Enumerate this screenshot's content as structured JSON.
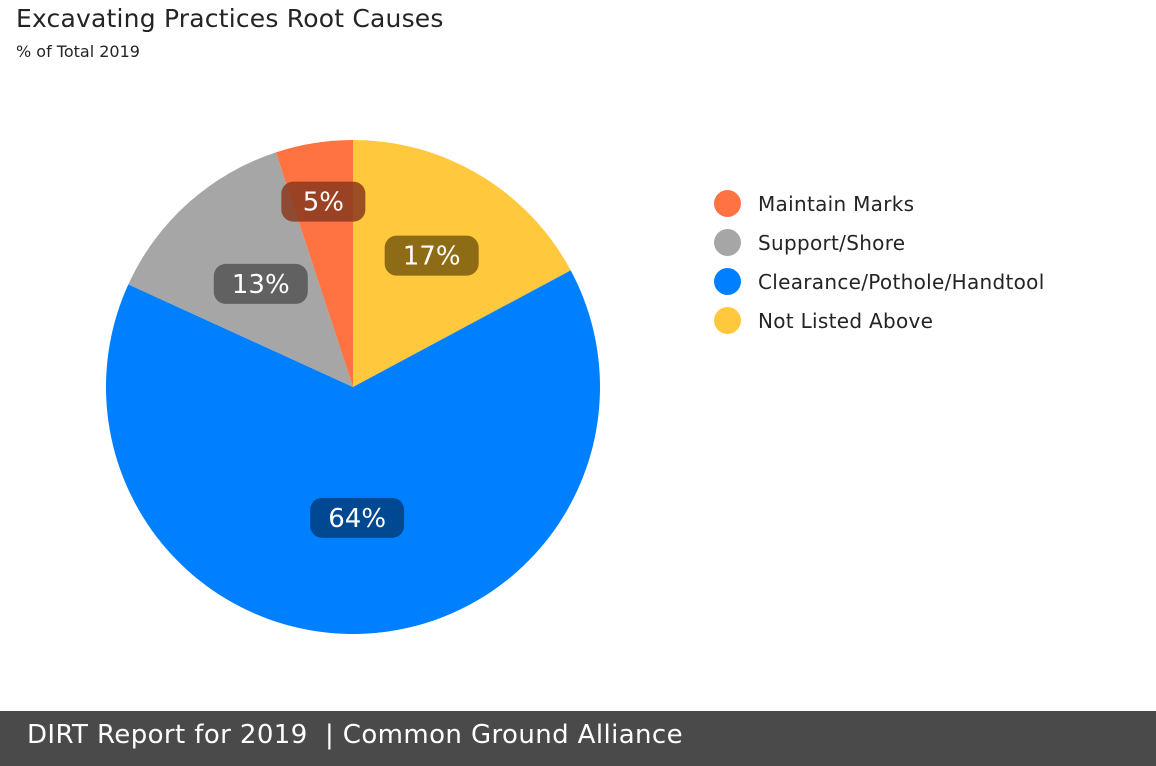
{
  "header": {
    "title": "Excavating Practices Root Causes",
    "subtitle": "% of Total 2019"
  },
  "chart_data": {
    "type": "pie",
    "title": "Excavating Practices Root Causes",
    "subtitle": "% of Total 2019",
    "legend_position": "right",
    "slices": [
      {
        "label": "Not Listed Above",
        "value": 17,
        "display": "17%",
        "color": "#FFC83D"
      },
      {
        "label": "Clearance/Pothole/Handtool",
        "value": 64,
        "display": "64%",
        "color": "#0080FF"
      },
      {
        "label": "Support/Shore",
        "value": 13,
        "display": "13%",
        "color": "#A6A6A6"
      },
      {
        "label": "Maintain Marks",
        "value": 5,
        "display": "5%",
        "color": "#FF7342"
      }
    ],
    "legend": [
      {
        "label": "Maintain Marks",
        "color": "#FF7342"
      },
      {
        "label": "Support/Shore",
        "color": "#A6A6A6"
      },
      {
        "label": "Clearance/Pothole/Handtool",
        "color": "#0080FF"
      },
      {
        "label": "Not Listed Above",
        "color": "#FFC83D"
      }
    ]
  },
  "footer": {
    "text": "DIRT Report for 2019  | Common Ground Alliance"
  }
}
